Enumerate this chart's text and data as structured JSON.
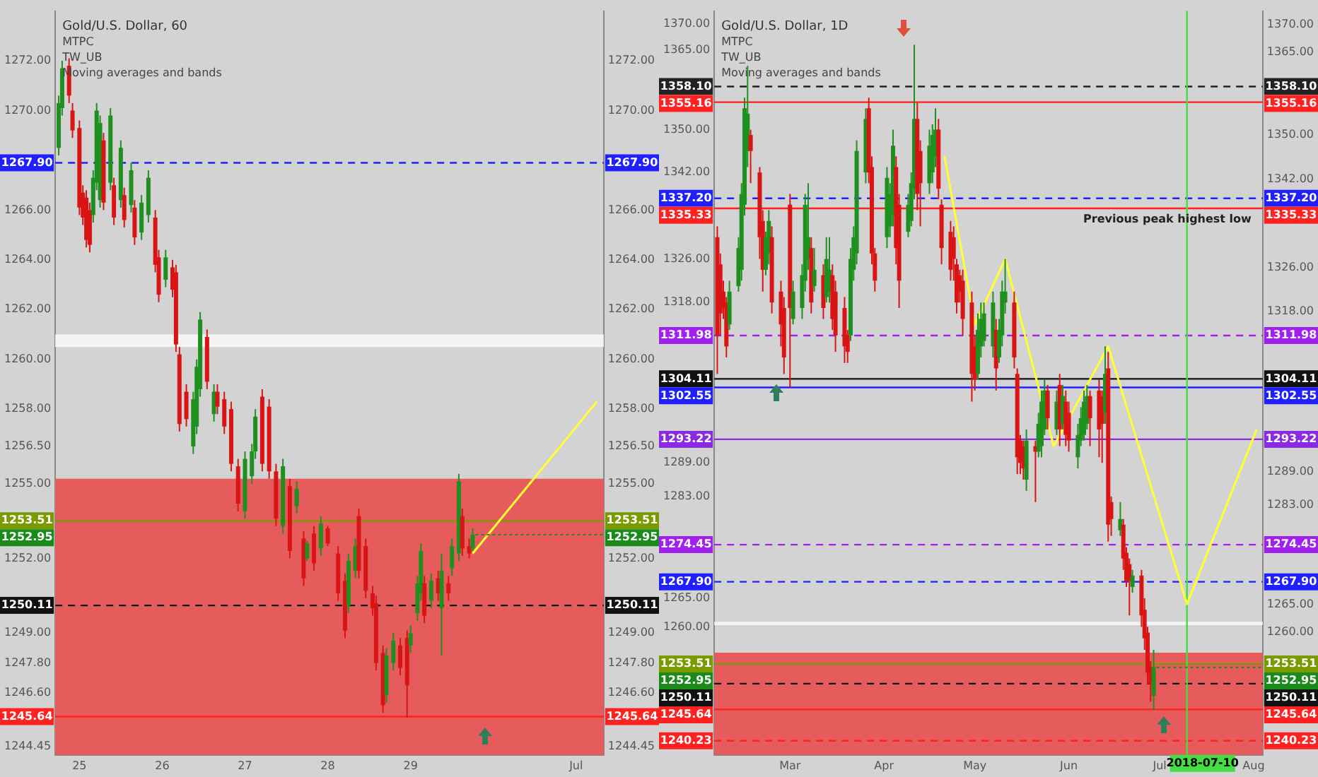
{
  "chart_data": [
    {
      "type": "candlestick",
      "title": "Gold/U.S. Dollar, 60",
      "annotations": [
        "MTPC",
        "TW_UB",
        "Moving averages and bands",
        {
          "text": "1252.95",
          "x": "2018-06-29T18:00",
          "y": 1252.95
        }
      ],
      "xlim": [
        "2018-06-24T17:00",
        "2018-07-01T08:00"
      ],
      "xticks": [
        {
          "value": "2018-06-25T00:00",
          "label": "25"
        },
        {
          "value": "2018-06-26T00:00",
          "label": "26"
        },
        {
          "value": "2018-06-27T00:00",
          "label": "27"
        },
        {
          "value": "2018-06-28T00:00",
          "label": "28"
        },
        {
          "value": "2018-06-29T00:00",
          "label": "29"
        },
        {
          "value": "2018-07-01T00:00",
          "label": "Jul"
        }
      ],
      "ylim": [
        1244.1,
        1274.0
      ],
      "yticks": [
        {
          "value": 1244.45,
          "label": "1244.45"
        },
        {
          "value": 1246.6,
          "label": "1246.60"
        },
        {
          "value": 1247.8,
          "label": "1247.80"
        },
        {
          "value": 1249,
          "label": "1249.00"
        },
        {
          "value": 1252,
          "label": "1252.00"
        },
        {
          "value": 1255,
          "label": "1255.00"
        },
        {
          "value": 1256.5,
          "label": "1256.50"
        },
        {
          "value": 1258,
          "label": "1258.00"
        },
        {
          "value": 1260,
          "label": "1260.00"
        },
        {
          "value": 1262,
          "label": "1262.00"
        },
        {
          "value": 1264,
          "label": "1264.00"
        },
        {
          "value": 1266,
          "label": "1266.00"
        },
        {
          "value": 1270,
          "label": "1270.00"
        },
        {
          "value": 1272,
          "label": "1272.00"
        }
      ],
      "y2lim": [
        1244.1,
        1274.0
      ],
      "y2ticks": [
        {
          "value": 1244.45,
          "label": "1244.45"
        },
        {
          "value": 1246.6,
          "label": "1246.60"
        },
        {
          "value": 1247.8,
          "label": "1247.80"
        },
        {
          "value": 1249,
          "label": "1249.00"
        },
        {
          "value": 1252,
          "label": "1252.00"
        },
        {
          "value": 1255,
          "label": "1255.00"
        },
        {
          "value": 1256.5,
          "label": "1256.50"
        },
        {
          "value": 1258,
          "label": "1258.00"
        },
        {
          "value": 1260,
          "label": "1260.00"
        },
        {
          "value": 1262,
          "label": "1262.00"
        },
        {
          "value": 1264,
          "label": "1264.00"
        },
        {
          "value": 1266,
          "label": "1266.00"
        },
        {
          "value": 1270,
          "label": "1270.00"
        },
        {
          "value": 1272,
          "label": "1272.00"
        }
      ],
      "bands": [
        {
          "axis": "y",
          "from": 1244.1,
          "to": 1255.2,
          "color": "#e65c5c"
        },
        {
          "axis": "y",
          "from": 1260.5,
          "to": 1261.0,
          "color": "#f4f4f4"
        }
      ],
      "ref_lines": [
        {
          "axis": "y",
          "value": 1267.9,
          "label": "1267.90",
          "color": "#2020ff",
          "line_style": "dashed"
        },
        {
          "axis": "y",
          "value": 1253.51,
          "label": "1253.51",
          "color": "#7a9a00",
          "line_style": "solid"
        },
        {
          "axis": "y",
          "value": 1250.11,
          "label": "1250.11",
          "color": "#111111",
          "line_style": "dashed"
        },
        {
          "axis": "y",
          "value": 1245.64,
          "label": "1245.64",
          "color": "#ff2020",
          "line_style": "solid"
        }
      ],
      "x": [
        "2018-06-24T18:00",
        "2018-06-24T19:00",
        "2018-06-24T21:00",
        "2018-06-24T22:00",
        "2018-06-25T00:00",
        "2018-06-25T01:00",
        "2018-06-25T02:00",
        "2018-06-25T03:00",
        "2018-06-25T04:00",
        "2018-06-25T05:00",
        "2018-06-25T06:00",
        "2018-06-25T07:00",
        "2018-06-25T09:00",
        "2018-06-25T10:00",
        "2018-06-25T12:00",
        "2018-06-25T13:00",
        "2018-06-25T15:00",
        "2018-06-25T16:00",
        "2018-06-25T18:00",
        "2018-06-25T20:00",
        "2018-06-25T22:00",
        "2018-06-25T23:00",
        "2018-06-26T01:00",
        "2018-06-26T03:00",
        "2018-06-26T04:00",
        "2018-06-26T05:00",
        "2018-06-26T07:00",
        "2018-06-26T09:00",
        "2018-06-26T10:00",
        "2018-06-26T11:00",
        "2018-06-26T13:00",
        "2018-06-26T15:00",
        "2018-06-26T16:00",
        "2018-06-26T18:00",
        "2018-06-26T20:00",
        "2018-06-26T22:00",
        "2018-06-27T00:00",
        "2018-06-27T02:00",
        "2018-06-27T03:00",
        "2018-06-27T05:00",
        "2018-06-27T07:00",
        "2018-06-27T09:00",
        "2018-06-27T11:00",
        "2018-06-27T13:00",
        "2018-06-27T15:00",
        "2018-06-27T17:00",
        "2018-06-27T18:00",
        "2018-06-27T20:00",
        "2018-06-27T22:00",
        "2018-06-28T00:00",
        "2018-06-28T03:00",
        "2018-06-28T05:00",
        "2018-06-28T06:00",
        "2018-06-28T08:00",
        "2018-06-28T09:00",
        "2018-06-28T11:00",
        "2018-06-28T13:00",
        "2018-06-28T14:00",
        "2018-06-28T16:00",
        "2018-06-28T17:00",
        "2018-06-28T19:00",
        "2018-06-28T21:00",
        "2018-06-28T23:00",
        "2018-06-29T00:00",
        "2018-06-29T02:00",
        "2018-06-29T03:00",
        "2018-06-29T04:00",
        "2018-06-29T06:00",
        "2018-06-29T08:00",
        "2018-06-29T09:00",
        "2018-06-29T11:00",
        "2018-06-29T12:00",
        "2018-06-29T14:00",
        "2018-06-29T15:00",
        "2018-06-29T17:00",
        "2018-06-29T18:00"
      ],
      "ohlc": [
        [
          1268.5,
          1270.6,
          1268.2,
          1270.3
        ],
        [
          1270.1,
          1272.0,
          1269.8,
          1271.7
        ],
        [
          1271.8,
          1272.1,
          1270.3,
          1270.6
        ],
        [
          1270.0,
          1270.3,
          1268.9,
          1269.2
        ],
        [
          1269.3,
          1269.6,
          1265.8,
          1266.1
        ],
        [
          1266.7,
          1267.0,
          1265.4,
          1265.7
        ],
        [
          1266.5,
          1266.8,
          1264.5,
          1264.8
        ],
        [
          1266.0,
          1266.3,
          1264.3,
          1264.6
        ],
        [
          1265.8,
          1267.6,
          1265.5,
          1267.3
        ],
        [
          1267.1,
          1270.3,
          1266.8,
          1270.0
        ],
        [
          1266.4,
          1269.8,
          1266.1,
          1269.5
        ],
        [
          1268.8,
          1269.1,
          1266.0,
          1266.3
        ],
        [
          1267.1,
          1270.1,
          1266.8,
          1269.8
        ],
        [
          1267.0,
          1267.3,
          1265.4,
          1265.7
        ],
        [
          1266.4,
          1268.8,
          1266.1,
          1268.5
        ],
        [
          1266.6,
          1266.9,
          1265.3,
          1265.6
        ],
        [
          1266.2,
          1267.9,
          1265.9,
          1267.6
        ],
        [
          1266.1,
          1266.4,
          1264.6,
          1264.9
        ],
        [
          1265.1,
          1266.6,
          1264.8,
          1266.3
        ],
        [
          1265.8,
          1267.6,
          1265.5,
          1267.3
        ],
        [
          1265.7,
          1266.0,
          1263.5,
          1263.8
        ],
        [
          1264.1,
          1264.4,
          1262.3,
          1262.6
        ],
        [
          1263.2,
          1264.4,
          1262.9,
          1264.1
        ],
        [
          1263.7,
          1264.0,
          1262.5,
          1262.8
        ],
        [
          1263.5,
          1263.8,
          1260.3,
          1260.6
        ],
        [
          1260.2,
          1260.5,
          1257.1,
          1257.4
        ],
        [
          1258.7,
          1259.0,
          1257.3,
          1257.6
        ],
        [
          1256.5,
          1258.7,
          1256.2,
          1258.4
        ],
        [
          1257.3,
          1260.0,
          1257.0,
          1259.7
        ],
        [
          1258.8,
          1261.9,
          1258.5,
          1261.6
        ],
        [
          1260.9,
          1261.2,
          1258.8,
          1259.1
        ],
        [
          1257.8,
          1259.0,
          1257.5,
          1258.7
        ],
        [
          1258.7,
          1259.0,
          1257.8,
          1258.1
        ],
        [
          1258.4,
          1258.7,
          1257.0,
          1257.3
        ],
        [
          1258.0,
          1258.3,
          1255.5,
          1255.8
        ],
        [
          1255.7,
          1256.0,
          1253.9,
          1254.2
        ],
        [
          1253.9,
          1256.3,
          1253.6,
          1256.0
        ],
        [
          1255.3,
          1256.6,
          1255.0,
          1256.3
        ],
        [
          1256.3,
          1258.0,
          1256.0,
          1257.7
        ],
        [
          1258.5,
          1258.8,
          1255.5,
          1255.8
        ],
        [
          1258.1,
          1258.4,
          1255.2,
          1255.5
        ],
        [
          1255.5,
          1255.8,
          1253.3,
          1253.6
        ],
        [
          1253.3,
          1256.0,
          1253.0,
          1255.7
        ],
        [
          1254.9,
          1255.2,
          1252.0,
          1252.3
        ],
        [
          1254.1,
          1255.1,
          1253.8,
          1254.8
        ],
        [
          1252.8,
          1253.1,
          1250.9,
          1251.2
        ],
        [
          1252.0,
          1252.7,
          1251.9,
          1252.6
        ],
        [
          1253.0,
          1253.3,
          1251.5,
          1251.8
        ],
        [
          1252.4,
          1253.7,
          1252.1,
          1253.4
        ],
        [
          1253.2,
          1253.3,
          1252.5,
          1252.6
        ],
        [
          1252.2,
          1252.5,
          1250.3,
          1250.6
        ],
        [
          1251.1,
          1251.4,
          1248.8,
          1249.1
        ],
        [
          1250.1,
          1252.2,
          1249.8,
          1251.9
        ],
        [
          1251.5,
          1252.8,
          1251.2,
          1252.5
        ],
        [
          1253.7,
          1254.0,
          1251.2,
          1251.5
        ],
        [
          1252.5,
          1252.8,
          1250.4,
          1250.7
        ],
        [
          1250.6,
          1250.9,
          1249.7,
          1250.0
        ],
        [
          1250.2,
          1250.5,
          1247.5,
          1247.8
        ],
        [
          1248.2,
          1248.5,
          1245.8,
          1246.1
        ],
        [
          1246.5,
          1248.4,
          1246.2,
          1248.1
        ],
        [
          1247.8,
          1249.0,
          1247.5,
          1248.7
        ],
        [
          1248.5,
          1248.8,
          1247.3,
          1247.6
        ],
        [
          1248.8,
          1249.1,
          1245.6,
          1246.9
        ],
        [
          1248.5,
          1249.3,
          1248.2,
          1249.0
        ],
        [
          1249.8,
          1251.3,
          1249.5,
          1251.0
        ],
        [
          1250.6,
          1252.6,
          1250.3,
          1252.3
        ],
        [
          1251.0,
          1251.3,
          1249.4,
          1249.7
        ],
        [
          1250.3,
          1251.4,
          1250.0,
          1251.1
        ],
        [
          1251.2,
          1251.5,
          1250.3,
          1250.6
        ],
        [
          1250.0,
          1252.2,
          1248.1,
          1251.5
        ],
        [
          1251.0,
          1251.3,
          1250.3,
          1250.6
        ],
        [
          1251.6,
          1252.8,
          1251.3,
          1252.5
        ],
        [
          1252.2,
          1255.4,
          1251.9,
          1255.1
        ],
        [
          1253.7,
          1254.0,
          1252.1,
          1252.4
        ],
        [
          1252.5,
          1252.8,
          1252.0,
          1252.2
        ],
        [
          1252.4,
          1253.2,
          1252.3,
          1252.95
        ]
      ],
      "series": [
        {
          "type": "line",
          "color": "#ffff33",
          "x": [
            "2018-06-29T18:00",
            "2018-07-01T06:00"
          ],
          "values": [
            1252.2,
            1258.3
          ]
        }
      ]
    },
    {
      "type": "candlestick",
      "title": "Gold/U.S. Dollar, 1D",
      "log": "y",
      "annotations": [
        "MTPC",
        "TW_UB",
        "Moving averages and bands",
        {
          "text": "Previous peak highest low",
          "y": 1335.33
        },
        {
          "text": "1252.95",
          "x": "2018-06-29",
          "y": 1252.95
        }
      ],
      "xlim": [
        "2018-02-04",
        "2018-08-04"
      ],
      "xticks": [
        {
          "value": "2018-03-01",
          "label": "Mar"
        },
        {
          "value": "2018-04-01",
          "label": "Apr"
        },
        {
          "value": "2018-05-01",
          "label": "May"
        },
        {
          "value": "2018-06-01",
          "label": "Jun"
        },
        {
          "value": "2018-07-01",
          "label": "Jul"
        },
        {
          "value": "2018-08-01",
          "label": "Aug"
        }
      ],
      "ylim": [
        1237.8,
        1372.4
      ],
      "yticks": [
        {
          "value": 1260,
          "label": "1260.00"
        },
        {
          "value": 1265,
          "label": "1265.00"
        },
        {
          "value": 1283,
          "label": "1283.00"
        },
        {
          "value": 1289,
          "label": "1289.00"
        },
        {
          "value": 1318,
          "label": "1318.00"
        },
        {
          "value": 1326,
          "label": "1326.00"
        },
        {
          "value": 1342,
          "label": "1342.00"
        },
        {
          "value": 1350,
          "label": "1350.00"
        },
        {
          "value": 1365,
          "label": "1365.00"
        },
        {
          "value": 1370,
          "label": "1370.00"
        }
      ],
      "y2lim": [
        1237.8,
        1372.4
      ],
      "y2ticks": [
        {
          "value": 1260,
          "label": "1260.00"
        },
        {
          "value": 1265,
          "label": "1265.00"
        },
        {
          "value": 1283,
          "label": "1283.00"
        },
        {
          "value": 1289,
          "label": "1289.00"
        },
        {
          "value": 1318,
          "label": "1318.00"
        },
        {
          "value": 1326,
          "label": "1326.00"
        },
        {
          "value": 1342,
          "label": "1342.00"
        },
        {
          "value": 1350,
          "label": "1350.00"
        },
        {
          "value": 1365,
          "label": "1365.00"
        },
        {
          "value": 1370,
          "label": "1370.00"
        }
      ],
      "bands": [
        {
          "axis": "y",
          "from": 1237.8,
          "to": 1255.5,
          "color": "#e65c5c"
        },
        {
          "axis": "y",
          "from": 1260.3,
          "to": 1260.9,
          "color": "#f4f4f4"
        }
      ],
      "ref_lines": [
        {
          "axis": "y",
          "value": 1358.1,
          "label": "1358.10",
          "color": "#222222",
          "line_style": "dashed"
        },
        {
          "axis": "y",
          "value": 1355.16,
          "label": "1355.16",
          "color": "#ff2020",
          "line_style": "solid"
        },
        {
          "axis": "y",
          "value": 1337.2,
          "label": "1337.20",
          "color": "#2020ff",
          "line_style": "dashed"
        },
        {
          "axis": "y",
          "value": 1335.33,
          "label": "1335.33",
          "color": "#ff2020",
          "line_style": "solid"
        },
        {
          "axis": "y",
          "value": 1311.98,
          "label": "1311.98",
          "color": "#a020f0",
          "line_style": "dashed"
        },
        {
          "axis": "y",
          "value": 1304.11,
          "label": "1304.11",
          "color": "#111111",
          "line_style": "solid"
        },
        {
          "axis": "y",
          "value": 1302.55,
          "label": "1302.55",
          "color": "#2020ff",
          "line_style": "solid"
        },
        {
          "axis": "y",
          "value": 1293.22,
          "label": "1293.22",
          "color": "#8a2be2",
          "line_style": "solid"
        },
        {
          "axis": "y",
          "value": 1274.45,
          "label": "1274.45",
          "color": "#a020f0",
          "line_style": "dashed"
        },
        {
          "axis": "y",
          "value": 1267.9,
          "label": "1267.90",
          "color": "#2020ff",
          "line_style": "dashed"
        },
        {
          "axis": "y",
          "value": 1253.51,
          "label": "1253.51",
          "color": "#7a9a00",
          "line_style": "solid"
        },
        {
          "axis": "y",
          "value": 1250.11,
          "label": "1250.11",
          "color": "#111111",
          "line_style": "dashed"
        },
        {
          "axis": "y",
          "value": 1245.64,
          "label": "1245.64",
          "color": "#ff2020",
          "line_style": "solid"
        },
        {
          "axis": "y",
          "value": 1240.23,
          "label": "1240.23",
          "color": "#ff2020",
          "line_style": "dashed"
        },
        {
          "axis": "x",
          "value": "2018-07-10",
          "label": "2018-07-10",
          "color": "#44dd44",
          "line_style": "solid"
        }
      ],
      "x": [
        "2018-02-05",
        "2018-02-06",
        "2018-02-07",
        "2018-02-08",
        "2018-02-09",
        "2018-02-12",
        "2018-02-13",
        "2018-02-14",
        "2018-02-15",
        "2018-02-16",
        "2018-02-19",
        "2018-02-20",
        "2018-02-21",
        "2018-02-22",
        "2018-02-23",
        "2018-02-26",
        "2018-02-27",
        "2018-03-01",
        "2018-03-02",
        "2018-03-05",
        "2018-03-06",
        "2018-03-07",
        "2018-03-08",
        "2018-03-09",
        "2018-03-12",
        "2018-03-13",
        "2018-03-14",
        "2018-03-15",
        "2018-03-16",
        "2018-03-19",
        "2018-03-20",
        "2018-03-21",
        "2018-03-22",
        "2018-03-23",
        "2018-03-26",
        "2018-03-27",
        "2018-03-28",
        "2018-03-29",
        "2018-04-02",
        "2018-04-03",
        "2018-04-04",
        "2018-04-05",
        "2018-04-06",
        "2018-04-09",
        "2018-04-10",
        "2018-04-11",
        "2018-04-12",
        "2018-04-13",
        "2018-04-16",
        "2018-04-17",
        "2018-04-18",
        "2018-04-19",
        "2018-04-20",
        "2018-04-23",
        "2018-04-24",
        "2018-04-25",
        "2018-04-26",
        "2018-04-27",
        "2018-04-30",
        "2018-05-01",
        "2018-05-02",
        "2018-05-03",
        "2018-05-04",
        "2018-05-07",
        "2018-05-08",
        "2018-05-09",
        "2018-05-10",
        "2018-05-11",
        "2018-05-14",
        "2018-05-15",
        "2018-05-16",
        "2018-05-17",
        "2018-05-18",
        "2018-05-21",
        "2018-05-22",
        "2018-05-23",
        "2018-05-24",
        "2018-05-25",
        "2018-05-28",
        "2018-05-29",
        "2018-05-30",
        "2018-05-31",
        "2018-06-01",
        "2018-06-04",
        "2018-06-05",
        "2018-06-06",
        "2018-06-07",
        "2018-06-08",
        "2018-06-11",
        "2018-06-12",
        "2018-06-13",
        "2018-06-14",
        "2018-06-15",
        "2018-06-18",
        "2018-06-19",
        "2018-06-20",
        "2018-06-21",
        "2018-06-22",
        "2018-06-25",
        "2018-06-26",
        "2018-06-27",
        "2018-06-28",
        "2018-06-29"
      ],
      "ohlc": [
        [
          1330,
          1332,
          1305,
          1312
        ],
        [
          1325,
          1327,
          1312,
          1316
        ],
        [
          1320,
          1322,
          1315,
          1317
        ],
        [
          1318,
          1319,
          1308,
          1310
        ],
        [
          1314,
          1322,
          1313,
          1320
        ],
        [
          1321,
          1330,
          1320,
          1328
        ],
        [
          1324,
          1340,
          1322,
          1338
        ],
        [
          1336,
          1356,
          1334,
          1354
        ],
        [
          1346,
          1362,
          1343,
          1353
        ],
        [
          1349,
          1350,
          1340,
          1346
        ],
        [
          1342,
          1343,
          1326,
          1330
        ],
        [
          1333,
          1335,
          1320,
          1324
        ],
        [
          1324,
          1331,
          1323,
          1330
        ],
        [
          1327,
          1335,
          1325,
          1333
        ],
        [
          1330,
          1332,
          1316,
          1318
        ],
        [
          1320,
          1322,
          1310,
          1314
        ],
        [
          1317,
          1319,
          1305,
          1308
        ],
        [
          1336,
          1338,
          1302.6,
          1317
        ],
        [
          1315,
          1322,
          1314,
          1320
        ],
        [
          1317,
          1325,
          1315,
          1323
        ],
        [
          1322,
          1338,
          1320,
          1336
        ],
        [
          1326,
          1340,
          1324,
          1330
        ],
        [
          1328,
          1330,
          1316,
          1318
        ],
        [
          1321,
          1328,
          1320,
          1324
        ],
        [
          1323,
          1325,
          1315,
          1317
        ],
        [
          1319,
          1330,
          1318,
          1326
        ],
        [
          1320,
          1330,
          1318,
          1324
        ],
        [
          1323,
          1325,
          1313,
          1315
        ],
        [
          1320,
          1322,
          1309,
          1312
        ],
        [
          1317,
          1319,
          1307,
          1310
        ],
        [
          1312,
          1313,
          1307,
          1309
        ],
        [
          1312,
          1328,
          1311,
          1326
        ],
        [
          1324,
          1332,
          1322,
          1330
        ],
        [
          1327,
          1348,
          1325,
          1346
        ],
        [
          1342,
          1354,
          1340,
          1352
        ],
        [
          1354,
          1356,
          1340,
          1342
        ],
        [
          1343,
          1345,
          1325,
          1327
        ],
        [
          1327,
          1328,
          1320,
          1322
        ],
        [
          1330,
          1343,
          1328,
          1341
        ],
        [
          1332,
          1340,
          1330,
          1338
        ],
        [
          1334,
          1350,
          1332,
          1347
        ],
        [
          1343,
          1345,
          1325,
          1328
        ],
        [
          1336,
          1338,
          1317,
          1322
        ],
        [
          1331,
          1338,
          1330,
          1336
        ],
        [
          1333,
          1342,
          1332,
          1340
        ],
        [
          1339,
          1366,
          1337,
          1352
        ],
        [
          1352,
          1355,
          1335,
          1338
        ],
        [
          1346,
          1348,
          1332,
          1340
        ],
        [
          1340,
          1350,
          1338,
          1347
        ],
        [
          1342,
          1351,
          1340,
          1349
        ],
        [
          1345,
          1354,
          1343,
          1350
        ],
        [
          1350,
          1352,
          1337,
          1339
        ],
        [
          1336,
          1337,
          1325,
          1328
        ],
        [
          1331,
          1333,
          1322,
          1324
        ],
        [
          1330,
          1332,
          1322,
          1326
        ],
        [
          1325,
          1326,
          1316,
          1318
        ],
        [
          1323,
          1324,
          1318,
          1320
        ],
        [
          1322,
          1324,
          1312,
          1315
        ],
        [
          1318,
          1320,
          1300,
          1305
        ],
        [
          1310,
          1312,
          1302,
          1304
        ],
        [
          1305,
          1316,
          1304,
          1313
        ],
        [
          1310,
          1318,
          1308,
          1315
        ],
        [
          1311,
          1318,
          1310,
          1316
        ],
        [
          1310,
          1320,
          1308,
          1318
        ],
        [
          1313,
          1315,
          1302,
          1306
        ],
        [
          1308,
          1315,
          1307,
          1313
        ],
        [
          1312,
          1322,
          1310,
          1320
        ],
        [
          1318,
          1326,
          1316,
          1320
        ],
        [
          1318,
          1320,
          1306,
          1308
        ],
        [
          1305,
          1306,
          1287,
          1290
        ],
        [
          1293,
          1294,
          1287,
          1289
        ],
        [
          1292,
          1293,
          1286,
          1288
        ],
        [
          1286,
          1295,
          1284,
          1293
        ],
        [
          1292,
          1293,
          1282,
          1291
        ],
        [
          1291,
          1298,
          1290,
          1296
        ],
        [
          1292,
          1302,
          1290,
          1300
        ],
        [
          1295,
          1304,
          1294,
          1302
        ],
        [
          1302,
          1303,
          1295,
          1297
        ],
        [
          1295,
          1302,
          1294,
          1300
        ],
        [
          1303,
          1305,
          1292,
          1295
        ],
        [
          1296,
          1303,
          1295,
          1301
        ],
        [
          1300,
          1302,
          1292,
          1294
        ],
        [
          1298,
          1300,
          1291,
          1293
        ],
        [
          1290,
          1296,
          1288,
          1294
        ],
        [
          1293,
          1299,
          1292,
          1297
        ],
        [
          1294,
          1302,
          1293,
          1300
        ],
        [
          1296,
          1303,
          1295,
          1301
        ],
        [
          1301,
          1302,
          1292,
          1297
        ],
        [
          1302,
          1304,
          1290,
          1295
        ],
        [
          1301,
          1302,
          1289,
          1296
        ],
        [
          1298,
          1310,
          1296,
          1305
        ],
        [
          1306,
          1309,
          1275,
          1278
        ],
        [
          1282,
          1283,
          1276,
          1279
        ],
        [
          1277,
          1282,
          1276,
          1279
        ],
        [
          1278,
          1279,
          1270,
          1272
        ],
        [
          1273,
          1274,
          1267,
          1268
        ],
        [
          1271,
          1272,
          1262,
          1268
        ],
        [
          1267,
          1270,
          1266,
          1269
        ],
        [
          1269,
          1270,
          1260,
          1262
        ],
        [
          1263,
          1265,
          1256,
          1258
        ],
        [
          1259,
          1260,
          1250,
          1252
        ],
        [
          1253,
          1254,
          1247,
          1250
        ],
        [
          1248,
          1256,
          1245.6,
          1252.95
        ]
      ],
      "series": [
        {
          "type": "line",
          "color": "#ffff33",
          "x": [
            "2018-04-21",
            "2018-05-01",
            "2018-05-11",
            "2018-05-27",
            "2018-06-14",
            "2018-07-10",
            "2018-08-02"
          ],
          "values": [
            1345,
            1314,
            1326,
            1292,
            1310,
            1264,
            1295
          ]
        }
      ]
    }
  ]
}
